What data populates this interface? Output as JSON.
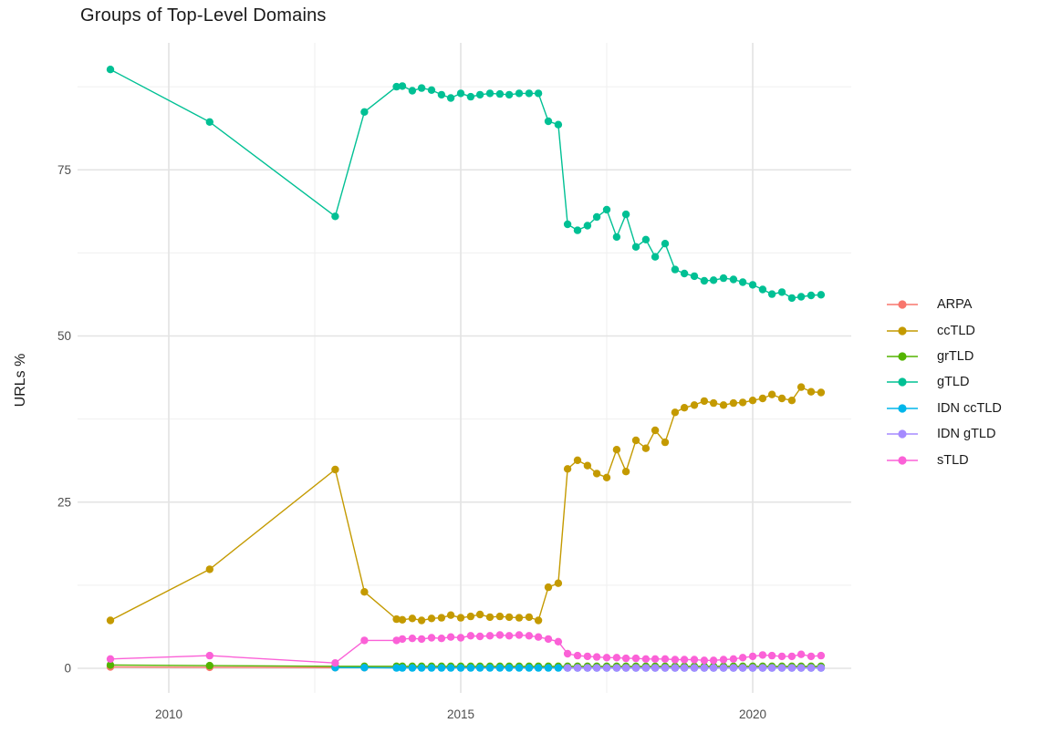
{
  "chart_data": {
    "type": "line",
    "title": "Groups of Top-Level Domains",
    "xlabel": "",
    "ylabel": "URLs %",
    "x_ticks": [
      2010,
      2015,
      2020
    ],
    "x_minor_ticks": [
      2012.5,
      2017.5
    ],
    "y_ticks": [
      0,
      25,
      50,
      75
    ],
    "y_minor_ticks": [
      12.5,
      37.5,
      62.5,
      87.5
    ],
    "xlim": [
      2008.45,
      2021.7
    ],
    "ylim": [
      -3.7,
      94.1
    ],
    "grid": true,
    "legend_position": "right",
    "x": [
      2009.0,
      2010.7,
      2012.85,
      2013.35,
      2013.9,
      2014.0,
      2014.17,
      2014.33,
      2014.5,
      2014.67,
      2014.83,
      2015.0,
      2015.17,
      2015.33,
      2015.5,
      2015.67,
      2015.83,
      2016.0,
      2016.17,
      2016.33,
      2016.5,
      2016.67,
      2016.83,
      2017.0,
      2017.17,
      2017.33,
      2017.5,
      2017.67,
      2017.83,
      2018.0,
      2018.17,
      2018.33,
      2018.5,
      2018.67,
      2018.83,
      2019.0,
      2019.17,
      2019.33,
      2019.5,
      2019.67,
      2019.83,
      2020.0,
      2020.17,
      2020.33,
      2020.5,
      2020.67,
      2020.83,
      2021.0,
      2021.17
    ],
    "series": [
      {
        "name": "ARPA",
        "color": "#F8766D",
        "values": [
          0.2,
          0.15,
          0.1,
          0.1,
          0.1,
          0.1,
          0.1,
          0.1,
          0.1,
          0.1,
          0.1,
          0.1,
          0.1,
          0.1,
          0.1,
          0.1,
          0.1,
          0.1,
          0.1,
          0.1,
          0.1,
          0.1,
          0.1,
          0.1,
          0.1,
          0.1,
          0.1,
          0.1,
          0.1,
          0.1,
          0.1,
          0.1,
          0.1,
          0.1,
          0.1,
          0.1,
          0.1,
          0.1,
          0.1,
          0.1,
          0.1,
          0.1,
          0.1,
          0.1,
          0.1,
          0.1,
          0.1,
          0.1,
          0.1
        ]
      },
      {
        "name": "ccTLD",
        "color": "#C49A00",
        "values": [
          7.2,
          14.9,
          29.9,
          11.5,
          7.4,
          7.3,
          7.5,
          7.2,
          7.5,
          7.6,
          8.0,
          7.6,
          7.8,
          8.1,
          7.7,
          7.8,
          7.7,
          7.6,
          7.7,
          7.2,
          12.2,
          12.8,
          30.0,
          31.3,
          30.5,
          29.3,
          28.7,
          32.9,
          29.6,
          34.3,
          33.1,
          35.8,
          34.0,
          38.5,
          39.2,
          39.6,
          40.2,
          39.9,
          39.6,
          39.9,
          40.0,
          40.3,
          40.6,
          41.2,
          40.6,
          40.3,
          42.3,
          41.6,
          41.5
        ]
      },
      {
        "name": "grTLD",
        "color": "#53B400",
        "values": [
          0.5,
          0.4,
          0.3,
          0.3,
          0.3,
          0.3,
          0.3,
          0.3,
          0.3,
          0.3,
          0.3,
          0.3,
          0.3,
          0.3,
          0.3,
          0.3,
          0.3,
          0.3,
          0.3,
          0.3,
          0.3,
          0.3,
          0.3,
          0.3,
          0.3,
          0.3,
          0.3,
          0.3,
          0.3,
          0.3,
          0.3,
          0.3,
          0.3,
          0.3,
          0.3,
          0.3,
          0.3,
          0.3,
          0.3,
          0.3,
          0.3,
          0.3,
          0.3,
          0.3,
          0.3,
          0.3,
          0.3,
          0.3,
          0.3
        ]
      },
      {
        "name": "gTLD",
        "color": "#00C094",
        "values": [
          90.1,
          82.2,
          68.0,
          83.7,
          87.5,
          87.6,
          86.9,
          87.3,
          87.0,
          86.3,
          85.8,
          86.5,
          86.0,
          86.3,
          86.5,
          86.4,
          86.3,
          86.5,
          86.5,
          86.5,
          82.3,
          81.8,
          66.8,
          65.9,
          66.6,
          67.9,
          69.0,
          64.9,
          68.3,
          63.4,
          64.5,
          61.9,
          63.9,
          60.0,
          59.4,
          59.0,
          58.3,
          58.4,
          58.7,
          58.5,
          58.1,
          57.7,
          57.0,
          56.3,
          56.6,
          55.7,
          55.9,
          56.1,
          56.2
        ]
      },
      {
        "name": "IDN ccTLD",
        "color": "#00B6EB",
        "values": [
          null,
          null,
          0.1,
          0.1,
          0.05,
          0.05,
          0.05,
          0.05,
          0.05,
          0.05,
          0.05,
          0.05,
          0.05,
          0.05,
          0.05,
          0.05,
          0.05,
          0.05,
          0.05,
          0.05,
          0.05,
          0.05,
          0.05,
          0.05,
          0.05,
          0.05,
          0.05,
          0.05,
          0.05,
          0.05,
          0.05,
          0.05,
          0.05,
          0.05,
          0.05,
          0.05,
          0.05,
          0.05,
          0.05,
          0.05,
          0.05,
          0.05,
          0.05,
          0.05,
          0.05,
          0.05,
          0.05,
          0.05,
          0.05
        ]
      },
      {
        "name": "IDN gTLD",
        "color": "#A58AFF",
        "values": [
          null,
          null,
          null,
          null,
          null,
          null,
          null,
          null,
          null,
          null,
          null,
          null,
          null,
          null,
          null,
          null,
          null,
          null,
          null,
          null,
          null,
          null,
          0.05,
          0.05,
          0.05,
          0.05,
          0.05,
          0.05,
          0.05,
          0.05,
          0.05,
          0.05,
          0.05,
          0.05,
          0.05,
          0.05,
          0.05,
          0.05,
          0.05,
          0.05,
          0.05,
          0.05,
          0.05,
          0.05,
          0.05,
          0.05,
          0.05,
          0.05,
          0.05
        ]
      },
      {
        "name": "sTLD",
        "color": "#FB61D7",
        "values": [
          1.4,
          1.9,
          0.8,
          4.2,
          4.2,
          4.4,
          4.5,
          4.4,
          4.6,
          4.5,
          4.7,
          4.6,
          4.9,
          4.8,
          4.9,
          5.0,
          4.9,
          5.0,
          4.9,
          4.7,
          4.4,
          4.0,
          2.2,
          1.9,
          1.8,
          1.7,
          1.6,
          1.6,
          1.5,
          1.5,
          1.4,
          1.4,
          1.4,
          1.3,
          1.3,
          1.3,
          1.2,
          1.2,
          1.3,
          1.4,
          1.6,
          1.8,
          2.0,
          1.9,
          1.8,
          1.8,
          2.1,
          1.8,
          1.9
        ]
      }
    ]
  },
  "colors": {
    "background": "#ffffff",
    "grid_major": "#e3e3e3",
    "grid_minor": "#efefef",
    "tick_label": "#4d4d4d",
    "title": "#1a1a1a"
  }
}
